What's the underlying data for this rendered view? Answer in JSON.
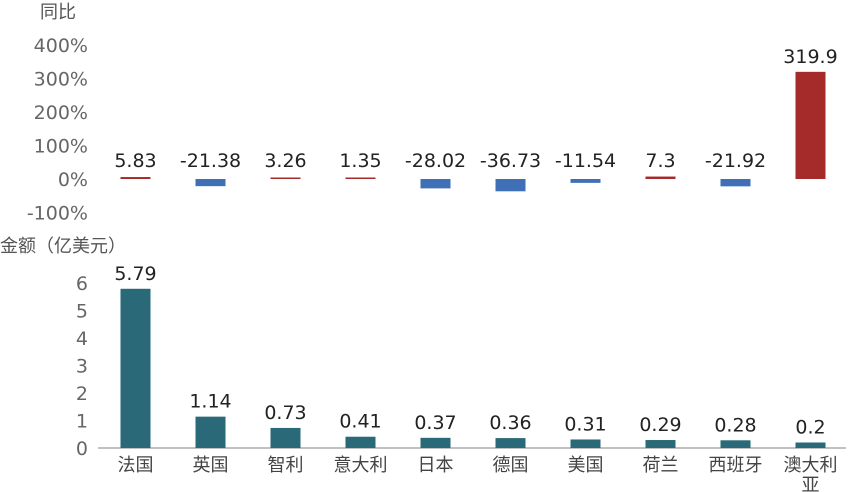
{
  "chart_data": [
    {
      "type": "bar",
      "title": "同比",
      "ylabel": "",
      "categories": [
        "法国",
        "英国",
        "智利",
        "意大利",
        "日本",
        "德国",
        "美国",
        "荷兰",
        "西班牙",
        "澳大利亚"
      ],
      "values": [
        5.83,
        -21.38,
        3.26,
        1.35,
        -28.02,
        -36.73,
        -11.54,
        7.3,
        -21.92,
        319.9
      ],
      "value_labels": [
        "5.83",
        "-21.38",
        "3.26",
        "1.35",
        "-28.02",
        "-36.73",
        "-11.54",
        "7.3",
        "-21.92",
        "319.9"
      ],
      "ylim": [
        -100,
        400
      ],
      "yticks": [
        "400%",
        "300%",
        "200%",
        "100%",
        "0%",
        "-100%"
      ],
      "colors": {
        "positive": "#a52a2a",
        "negative": "#3f6fb5"
      },
      "grid": false
    },
    {
      "type": "bar",
      "title": "金额（亿美元）",
      "ylabel": "",
      "categories": [
        "法国",
        "英国",
        "智利",
        "意大利",
        "日本",
        "德国",
        "美国",
        "荷兰",
        "西班牙",
        "澳大利亚"
      ],
      "values": [
        5.79,
        1.14,
        0.73,
        0.41,
        0.37,
        0.36,
        0.31,
        0.29,
        0.28,
        0.2
      ],
      "value_labels": [
        "5.79",
        "1.14",
        "0.73",
        "0.41",
        "0.37",
        "0.36",
        "0.31",
        "0.29",
        "0.28",
        "0.2"
      ],
      "ylim": [
        0,
        6.5
      ],
      "yticks": [
        "0",
        "1",
        "2",
        "3",
        "4",
        "5",
        "6"
      ],
      "colors": {
        "bar": "#2a6a78"
      },
      "grid": false
    }
  ],
  "category_labels": [
    "法国",
    "英国",
    "智利",
    "意大利",
    "日本",
    "德国",
    "美国",
    "荷兰",
    "西班牙",
    "澳大利\n亚"
  ]
}
